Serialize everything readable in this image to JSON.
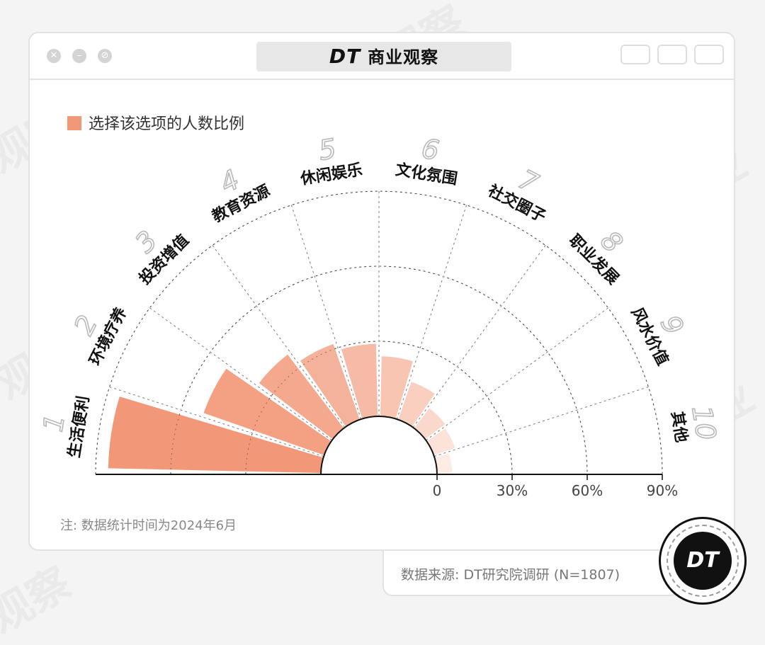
{
  "header": {
    "logo_text": "DT",
    "title": "商业观察"
  },
  "legend": {
    "label": "选择该选项的人数比例",
    "color": "#f29878"
  },
  "note": "注: 数据统计时间为2024年6月",
  "source": "数据来源: DT研究院调研 (N=1807)",
  "badge": {
    "text": "DT"
  },
  "chart_data": {
    "type": "bar",
    "subtype": "polar-semicircle",
    "categories": [
      "生活便利",
      "环境疗养",
      "投资增值",
      "教育资源",
      "休闲娱乐",
      "文化氛围",
      "社交圈子",
      "职业发展",
      "风水价值",
      "其他"
    ],
    "category_numbers": [
      "1",
      "2",
      "3",
      "4",
      "5",
      "6",
      "7",
      "8",
      "9",
      "10"
    ],
    "values": [
      85,
      51,
      37,
      32,
      29,
      24,
      16,
      10,
      9,
      6
    ],
    "unit": "%",
    "rlim": [
      0,
      90
    ],
    "ticks": [
      0,
      30,
      60,
      90
    ],
    "tick_labels": [
      "0",
      "30%",
      "60%",
      "90%"
    ],
    "colors": [
      "#f29878",
      "#f3a083",
      "#f4a98e",
      "#f5b29a",
      "#f6bba6",
      "#f8c5b3",
      "#f9cfc0",
      "#fad8cc",
      "#fce2d8",
      "#fdebe4"
    ],
    "grid": true
  }
}
